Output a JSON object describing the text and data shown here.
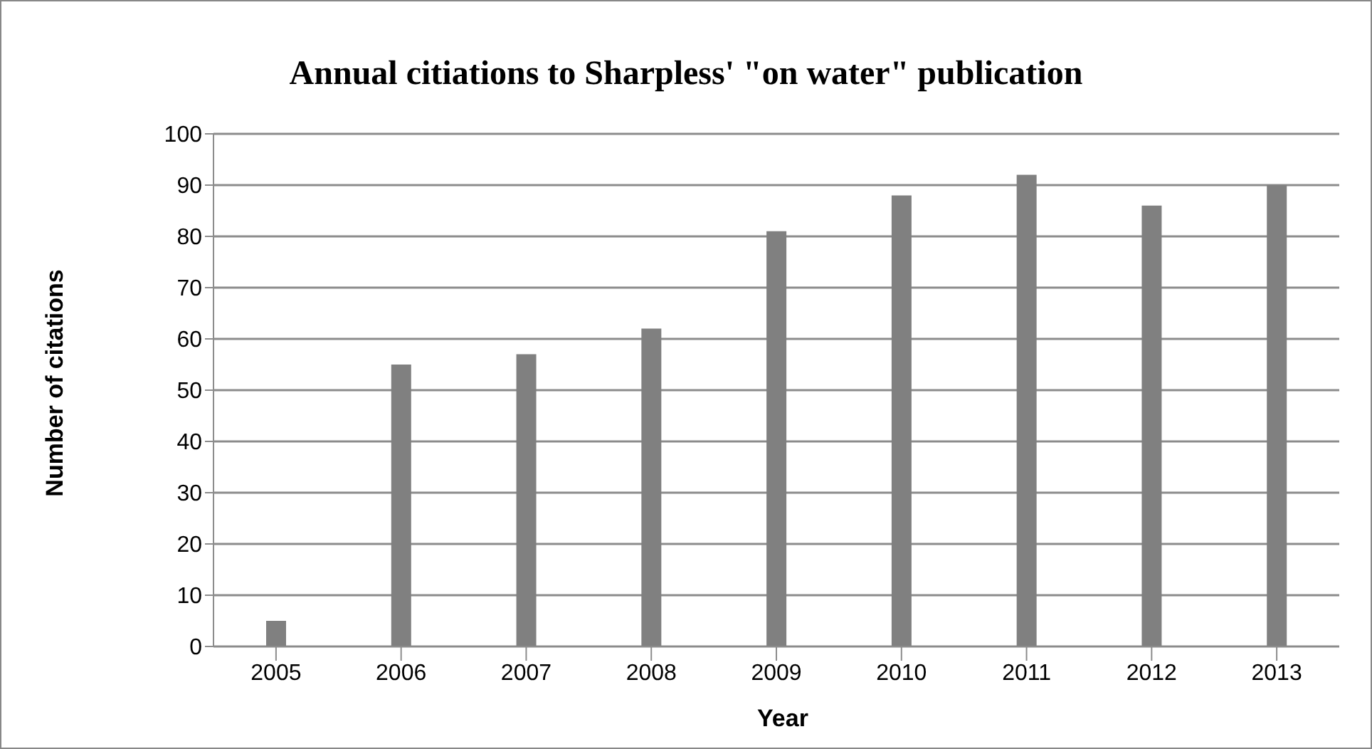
{
  "chart_data": {
    "type": "bar",
    "title": "Annual citiations to Sharpless' \"on water\" publication",
    "xlabel": "Year",
    "ylabel": "Number of citations",
    "categories": [
      "2005",
      "2006",
      "2007",
      "2008",
      "2009",
      "2010",
      "2011",
      "2012",
      "2013"
    ],
    "values": [
      5,
      55,
      57,
      62,
      81,
      88,
      92,
      86,
      90
    ],
    "color": "#808080",
    "ylim": [
      0,
      100
    ],
    "yticks": [
      0,
      10,
      20,
      30,
      40,
      50,
      60,
      70,
      80,
      90,
      100
    ],
    "grid": "y",
    "legend": false
  }
}
